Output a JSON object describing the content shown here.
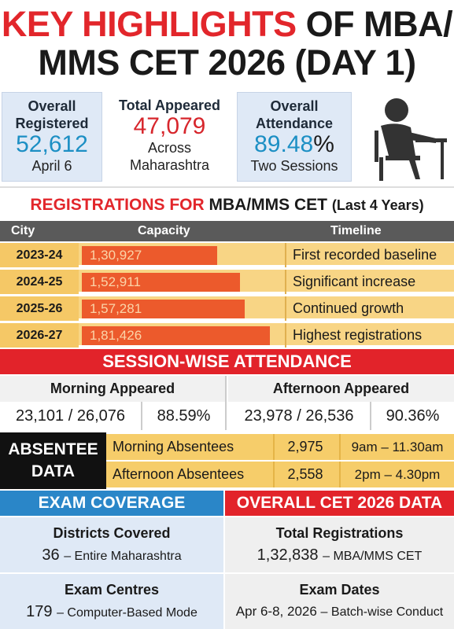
{
  "title": {
    "part1_red": "KEY HIGHLIGHTS",
    "part1_dark": "OF MBA/",
    "line2": "MMS CET 2026 (DAY 1)"
  },
  "stats": [
    {
      "label1": "Overall",
      "label2": "Registered",
      "value": "52,612",
      "sub": "April 6"
    },
    {
      "label1": "Total Appeared",
      "value": "47,079",
      "sub1": "Across",
      "sub2": "Maharashtra"
    },
    {
      "label1": "Overall",
      "label2": "Attendance",
      "value": "89.48",
      "value_suffix": "%",
      "sub": "Two Sessions"
    }
  ],
  "registrations": {
    "heading_red": "REGISTRATIONS FOR",
    "heading_dark": "MBA/MMS CET",
    "heading_small": "(Last 4 Years)",
    "col_city": "City",
    "col_capacity": "Capacity",
    "col_timeline": "Timeline"
  },
  "chart_data": {
    "type": "bar",
    "categories": [
      "2023-24",
      "2024-25",
      "2025-26",
      "2026-27"
    ],
    "values": [
      130927,
      152911,
      157281,
      181426
    ],
    "value_labels": [
      "1,30,927",
      "1,52,911",
      "1,57,281",
      "1,81,426"
    ],
    "timeline": [
      "First recorded baseline",
      "Significant increase",
      "Continued growth",
      "Highest registrations"
    ],
    "xlabel": "Capacity",
    "ylabel": "City"
  },
  "session": {
    "heading": "SESSION-WISE ATTENDANCE",
    "morning_label": "Morning Appeared",
    "afternoon_label": "Afternoon Appeared",
    "morning_count": "23,101 / 26,076",
    "morning_pct": "88.59%",
    "afternoon_count": "23,978 / 26,536",
    "afternoon_pct": "90.36%"
  },
  "absentee": {
    "heading1": "ABSENTEE",
    "heading2": "DATA",
    "rows": [
      {
        "label": "Morning Absentees",
        "count": "2,975",
        "time": "9am – 11.30am"
      },
      {
        "label": "Afternoon Absentees",
        "count": "2,558",
        "time": "2pm – 4.30pm"
      }
    ]
  },
  "coverage": {
    "heading": "EXAM COVERAGE",
    "districts_label": "Districts Covered",
    "districts_value": "36",
    "districts_note": "– Entire Maharashtra",
    "centres_label": "Exam Centres",
    "centres_value": "179",
    "centres_note": "– Computer-Based Mode"
  },
  "overall": {
    "heading": "OVERALL CET 2026 DATA",
    "regs_label": "Total Registrations",
    "regs_value": "1,32,838",
    "regs_note": "– MBA/MMS CET",
    "dates_label": "Exam Dates",
    "dates_value": "Apr 6-8, 2026",
    "dates_note": "– Batch-wise Conduct"
  },
  "colors": {
    "red": "#e2262b",
    "blue": "#1c8fc4",
    "orange_bar": "#ec5a2c",
    "yellow": "#f8d585"
  },
  "icons": {
    "figure": "student-at-desk-icon"
  }
}
